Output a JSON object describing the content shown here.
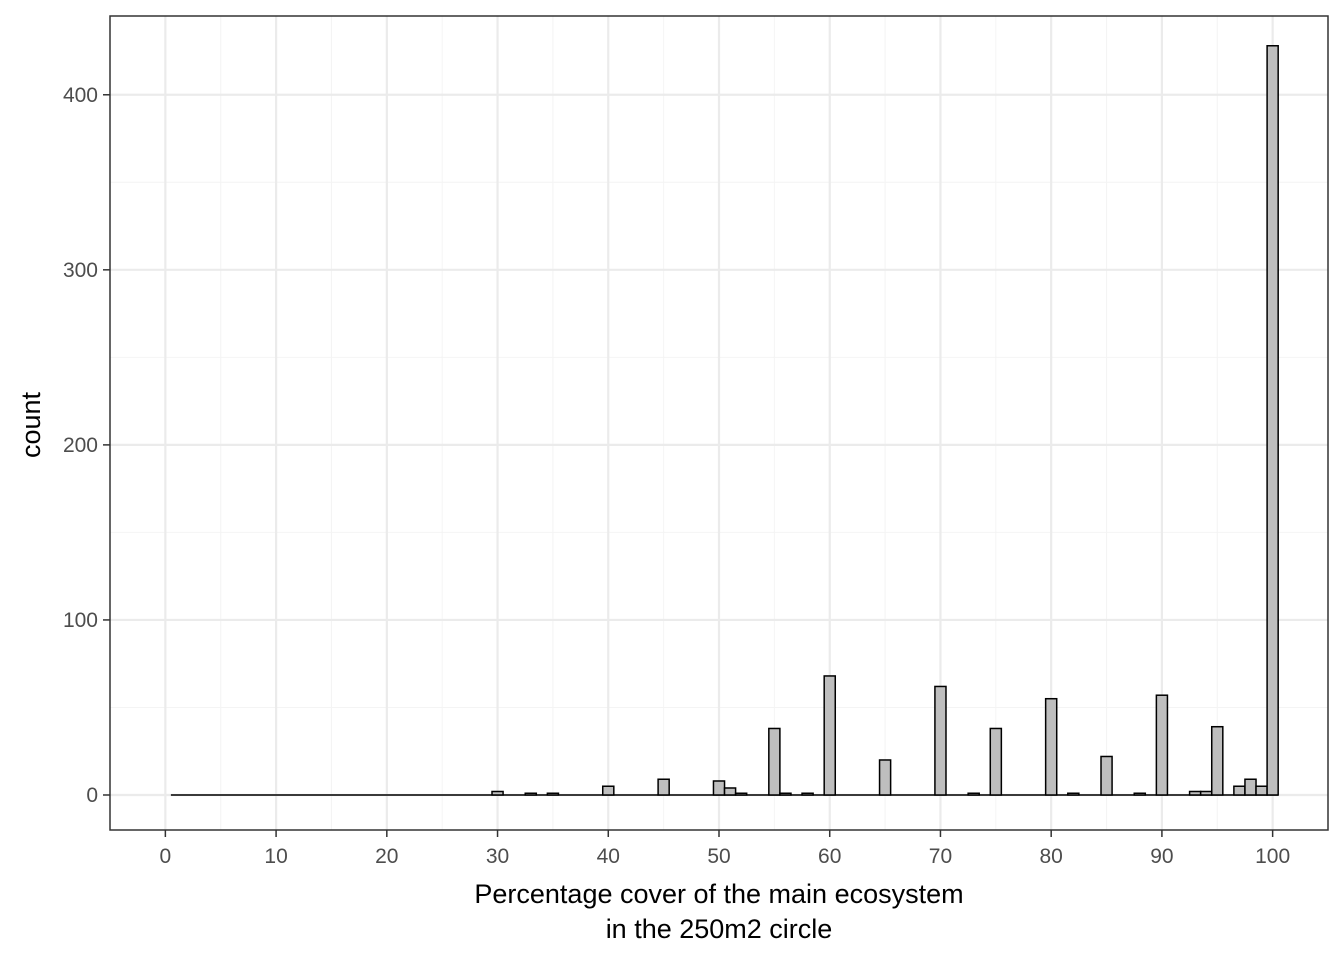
{
  "chart_data": {
    "type": "bar",
    "xlabel": [
      "Percentage cover of the main ecosystem",
      "in the 250m2 circle"
    ],
    "ylabel": "count",
    "xlim": [
      -5,
      105
    ],
    "ylim": [
      -20,
      445
    ],
    "x_ticks": [
      0,
      10,
      20,
      30,
      40,
      50,
      60,
      70,
      80,
      90,
      100
    ],
    "y_ticks": [
      0,
      100,
      200,
      300,
      400
    ],
    "grid": true,
    "bin_width": 1,
    "x_range": [
      1,
      100
    ],
    "bins": [
      {
        "x": 30,
        "count": 2
      },
      {
        "x": 33,
        "count": 1
      },
      {
        "x": 35,
        "count": 1
      },
      {
        "x": 40,
        "count": 5
      },
      {
        "x": 45,
        "count": 9
      },
      {
        "x": 50,
        "count": 8
      },
      {
        "x": 51,
        "count": 4
      },
      {
        "x": 52,
        "count": 1
      },
      {
        "x": 55,
        "count": 38
      },
      {
        "x": 56,
        "count": 1
      },
      {
        "x": 58,
        "count": 1
      },
      {
        "x": 60,
        "count": 68
      },
      {
        "x": 65,
        "count": 20
      },
      {
        "x": 70,
        "count": 62
      },
      {
        "x": 73,
        "count": 1
      },
      {
        "x": 75,
        "count": 38
      },
      {
        "x": 80,
        "count": 55
      },
      {
        "x": 82,
        "count": 1
      },
      {
        "x": 85,
        "count": 22
      },
      {
        "x": 88,
        "count": 1
      },
      {
        "x": 90,
        "count": 57
      },
      {
        "x": 93,
        "count": 2
      },
      {
        "x": 94,
        "count": 2
      },
      {
        "x": 95,
        "count": 39
      },
      {
        "x": 97,
        "count": 5
      },
      {
        "x": 98,
        "count": 9
      },
      {
        "x": 99,
        "count": 5
      },
      {
        "x": 100,
        "count": 428
      }
    ],
    "colors": {
      "bar_fill": "#bebebe",
      "bar_stroke": "#000000",
      "grid_major": "#ebebeb",
      "grid_minor": "#f4f4f4",
      "panel_border": "#333333",
      "tick_label": "#4d4d4d"
    }
  }
}
